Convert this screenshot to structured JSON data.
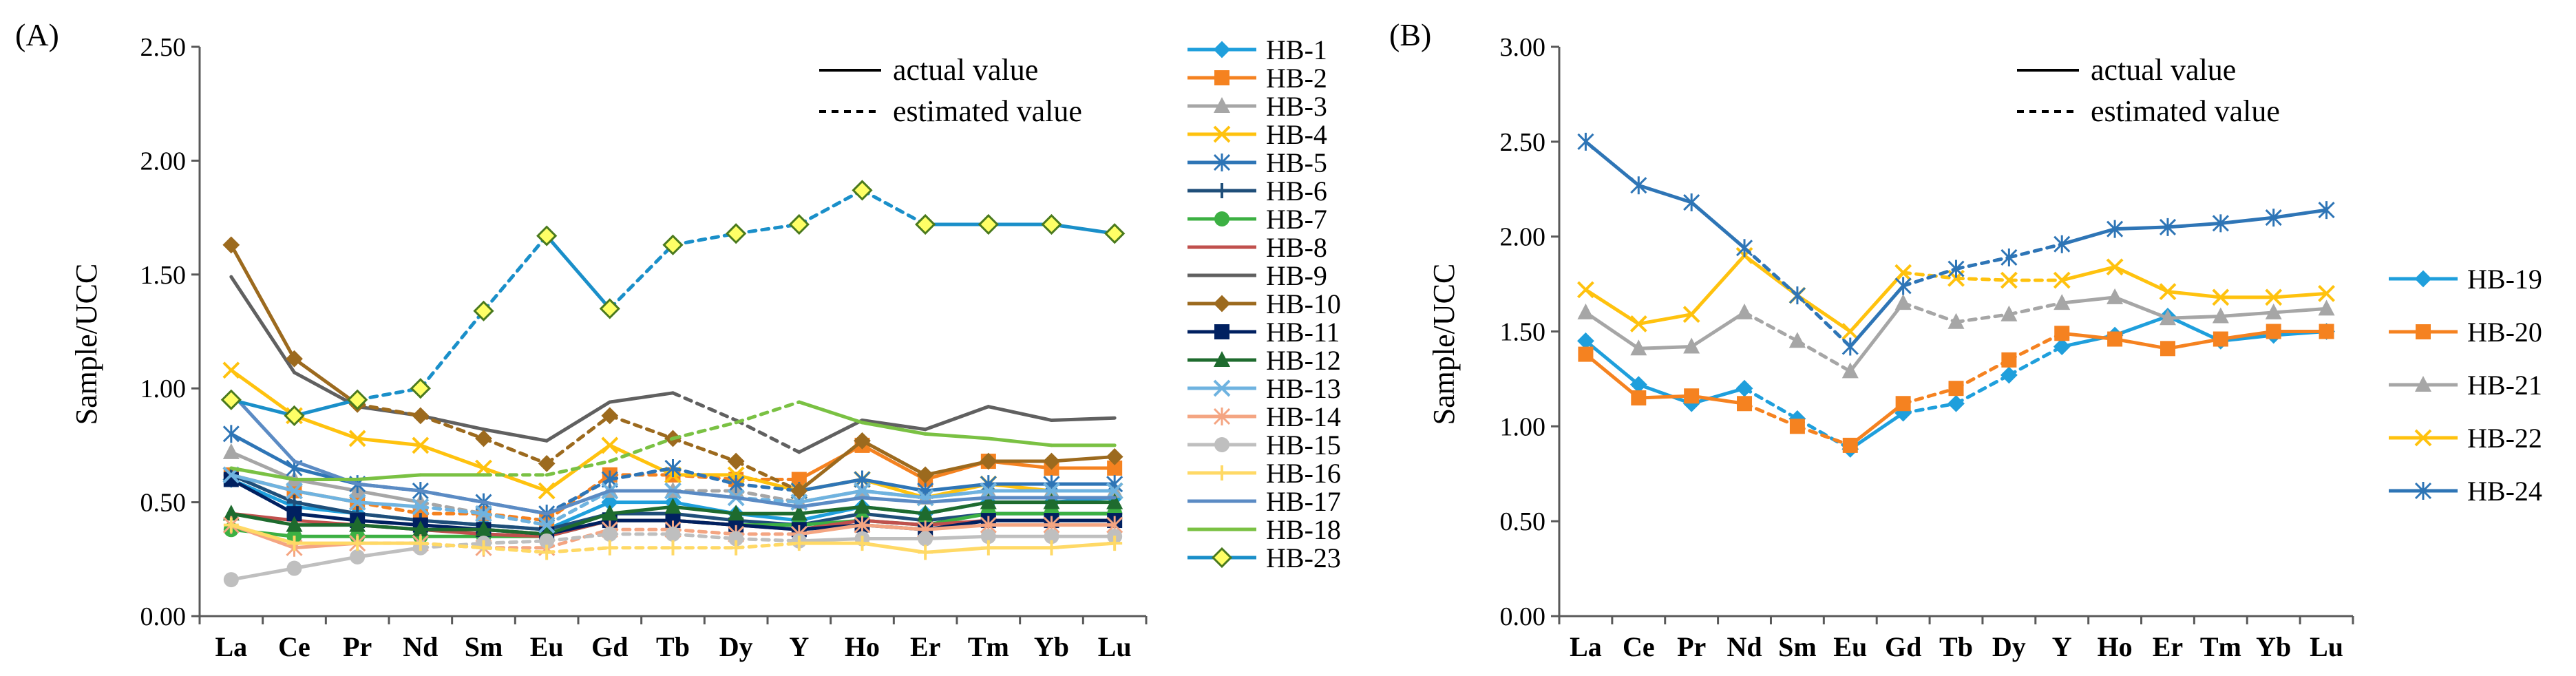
{
  "chart_data": [
    {
      "type": "line",
      "panel_label": "(A)",
      "ylabel": "Sample/UCC",
      "xlabel": "",
      "ylim": [
        0,
        2.5
      ],
      "yticks": [
        "0.00",
        "0.50",
        "1.00",
        "1.50",
        "2.00",
        "2.50"
      ],
      "yticks_values": [
        0,
        0.5,
        1.0,
        1.5,
        2.0,
        2.5
      ],
      "categories": [
        "La",
        "Ce",
        "Pr",
        "Nd",
        "Sm",
        "Eu",
        "Gd",
        "Tb",
        "Dy",
        "Y",
        "Ho",
        "Er",
        "Tm",
        "Yb",
        "Lu"
      ],
      "line_style_note": {
        "actual": "actual value",
        "estimated": "estimated value"
      },
      "series": [
        {
          "name": "HB-1",
          "color": "#1f9fdc",
          "marker": "diamond",
          "values": [
            0.6,
            0.48,
            0.45,
            0.42,
            0.4,
            0.38,
            0.5,
            0.5,
            0.45,
            0.42,
            0.48,
            0.45,
            0.5,
            0.5,
            0.52
          ]
        },
        {
          "name": "HB-2",
          "color": "#f58220",
          "marker": "square",
          "values": [
            0.62,
            0.55,
            0.5,
            0.45,
            0.45,
            0.42,
            0.62,
            0.62,
            0.6,
            0.6,
            0.75,
            0.6,
            0.68,
            0.65,
            0.65
          ]
        },
        {
          "name": "HB-3",
          "color": "#a6a6a6",
          "marker": "triangle",
          "values": [
            0.72,
            0.6,
            0.55,
            0.5,
            0.45,
            0.4,
            0.55,
            0.55,
            0.55,
            0.5,
            0.55,
            0.52,
            0.55,
            0.55,
            0.55
          ]
        },
        {
          "name": "HB-4",
          "color": "#ffc20e",
          "marker": "x",
          "values": [
            1.08,
            0.88,
            0.78,
            0.75,
            0.65,
            0.55,
            0.75,
            0.62,
            0.62,
            0.55,
            0.6,
            0.52,
            0.58,
            0.55,
            0.55
          ]
        },
        {
          "name": "HB-5",
          "color": "#2e75b6",
          "marker": "star",
          "values": [
            0.8,
            0.65,
            0.58,
            0.55,
            0.5,
            0.45,
            0.6,
            0.65,
            0.58,
            0.55,
            0.6,
            0.55,
            0.58,
            0.58,
            0.58
          ]
        },
        {
          "name": "HB-6",
          "color": "#1f4e79",
          "marker": "plus",
          "values": [
            0.62,
            0.5,
            0.45,
            0.42,
            0.4,
            0.38,
            0.45,
            0.45,
            0.42,
            0.4,
            0.45,
            0.42,
            0.45,
            0.45,
            0.45
          ]
        },
        {
          "name": "HB-7",
          "color": "#3cb043",
          "marker": "circle",
          "values": [
            0.38,
            0.35,
            0.35,
            0.35,
            0.35,
            0.35,
            0.42,
            0.42,
            0.4,
            0.4,
            0.42,
            0.4,
            0.45,
            0.45,
            0.45
          ]
        },
        {
          "name": "HB-8",
          "color": "#c0504d",
          "marker": "none",
          "values": [
            0.45,
            0.42,
            0.4,
            0.38,
            0.36,
            0.35,
            0.42,
            0.42,
            0.4,
            0.38,
            0.42,
            0.4,
            0.42,
            0.42,
            0.42
          ]
        },
        {
          "name": "HB-9",
          "color": "#606060",
          "marker": "none",
          "values": [
            1.49,
            1.07,
            0.92,
            0.88,
            0.82,
            0.77,
            0.94,
            0.98,
            0.86,
            0.72,
            0.86,
            0.82,
            0.92,
            0.86,
            0.87
          ]
        },
        {
          "name": "HB-10",
          "color": "#9c6a1e",
          "marker": "diamond",
          "values": [
            1.63,
            1.13,
            0.93,
            0.88,
            0.78,
            0.67,
            0.88,
            0.78,
            0.68,
            0.55,
            0.77,
            0.62,
            0.68,
            0.68,
            0.7
          ]
        },
        {
          "name": "HB-11",
          "color": "#002060",
          "marker": "square",
          "values": [
            0.6,
            0.45,
            0.42,
            0.4,
            0.38,
            0.36,
            0.42,
            0.42,
            0.4,
            0.38,
            0.4,
            0.38,
            0.42,
            0.42,
            0.42
          ]
        },
        {
          "name": "HB-12",
          "color": "#1e6b2e",
          "marker": "triangle",
          "values": [
            0.45,
            0.4,
            0.4,
            0.38,
            0.38,
            0.36,
            0.45,
            0.48,
            0.45,
            0.45,
            0.48,
            0.45,
            0.5,
            0.5,
            0.5
          ]
        },
        {
          "name": "HB-13",
          "color": "#6fb3e0",
          "marker": "x",
          "values": [
            0.62,
            0.55,
            0.5,
            0.48,
            0.45,
            0.4,
            0.55,
            0.55,
            0.52,
            0.5,
            0.55,
            0.52,
            0.55,
            0.55,
            0.55
          ]
        },
        {
          "name": "HB-14",
          "color": "#f4a582",
          "marker": "star",
          "values": [
            0.4,
            0.3,
            0.32,
            0.32,
            0.3,
            0.3,
            0.38,
            0.38,
            0.36,
            0.36,
            0.4,
            0.38,
            0.4,
            0.4,
            0.4
          ]
        },
        {
          "name": "HB-15",
          "color": "#bfbfbf",
          "marker": "circle",
          "values": [
            0.16,
            0.21,
            0.26,
            0.3,
            0.32,
            0.33,
            0.36,
            0.36,
            0.34,
            0.33,
            0.34,
            0.34,
            0.35,
            0.35,
            0.35
          ]
        },
        {
          "name": "HB-16",
          "color": "#ffd966",
          "marker": "plus",
          "values": [
            0.4,
            0.32,
            0.32,
            0.32,
            0.3,
            0.28,
            0.3,
            0.3,
            0.3,
            0.32,
            0.32,
            0.28,
            0.3,
            0.3,
            0.32
          ]
        },
        {
          "name": "HB-17",
          "color": "#5b8bc4",
          "marker": "none",
          "values": [
            0.98,
            0.68,
            0.58,
            0.55,
            0.5,
            0.45,
            0.55,
            0.55,
            0.52,
            0.48,
            0.52,
            0.5,
            0.52,
            0.52,
            0.52
          ]
        },
        {
          "name": "HB-18",
          "color": "#7ac143",
          "marker": "none",
          "values": [
            0.65,
            0.6,
            0.6,
            0.62,
            0.62,
            0.62,
            0.68,
            0.78,
            0.85,
            0.94,
            0.85,
            0.8,
            0.78,
            0.75,
            0.75
          ]
        },
        {
          "name": "HB-23",
          "color": "#1a8fc9",
          "marker": "diamond-yellow",
          "values": [
            0.95,
            0.88,
            0.95,
            1.0,
            1.34,
            1.67,
            1.35,
            1.63,
            1.68,
            1.72,
            1.87,
            1.72,
            1.72,
            1.72,
            1.68
          ]
        }
      ]
    },
    {
      "type": "line",
      "panel_label": "(B)",
      "ylabel": "Sample/UCC",
      "xlabel": "",
      "ylim": [
        0,
        3.0
      ],
      "yticks": [
        "0.00",
        "0.50",
        "1.00",
        "1.50",
        "2.00",
        "2.50",
        "3.00"
      ],
      "yticks_values": [
        0,
        0.5,
        1.0,
        1.5,
        2.0,
        2.5,
        3.0
      ],
      "categories": [
        "La",
        "Ce",
        "Pr",
        "Nd",
        "Sm",
        "Eu",
        "Gd",
        "Tb",
        "Dy",
        "Y",
        "Ho",
        "Er",
        "Tm",
        "Yb",
        "Lu"
      ],
      "line_style_note": {
        "actual": "actual value",
        "estimated": "estimated value"
      },
      "series": [
        {
          "name": "HB-19",
          "color": "#1f9fdc",
          "marker": "diamond",
          "values": [
            1.45,
            1.22,
            1.12,
            1.2,
            1.04,
            0.88,
            1.07,
            1.12,
            1.27,
            1.42,
            1.48,
            1.58,
            1.45,
            1.48,
            1.5
          ]
        },
        {
          "name": "HB-20",
          "color": "#f58220",
          "marker": "square",
          "values": [
            1.38,
            1.15,
            1.16,
            1.12,
            1.0,
            0.9,
            1.12,
            1.2,
            1.35,
            1.49,
            1.46,
            1.41,
            1.46,
            1.5,
            1.5
          ]
        },
        {
          "name": "HB-21",
          "color": "#a6a6a6",
          "marker": "triangle",
          "values": [
            1.6,
            1.41,
            1.42,
            1.6,
            1.45,
            1.29,
            1.65,
            1.55,
            1.59,
            1.65,
            1.68,
            1.57,
            1.58,
            1.6,
            1.62
          ]
        },
        {
          "name": "HB-22",
          "color": "#ffc20e",
          "marker": "x",
          "values": [
            1.72,
            1.54,
            1.59,
            1.9,
            1.69,
            1.5,
            1.81,
            1.78,
            1.77,
            1.77,
            1.84,
            1.71,
            1.68,
            1.68,
            1.7
          ]
        },
        {
          "name": "HB-24",
          "color": "#2e75b6",
          "marker": "star",
          "values": [
            2.5,
            2.27,
            2.18,
            1.94,
            1.69,
            1.42,
            1.74,
            1.83,
            1.89,
            1.96,
            2.04,
            2.05,
            2.07,
            2.1,
            2.14
          ]
        }
      ]
    }
  ]
}
